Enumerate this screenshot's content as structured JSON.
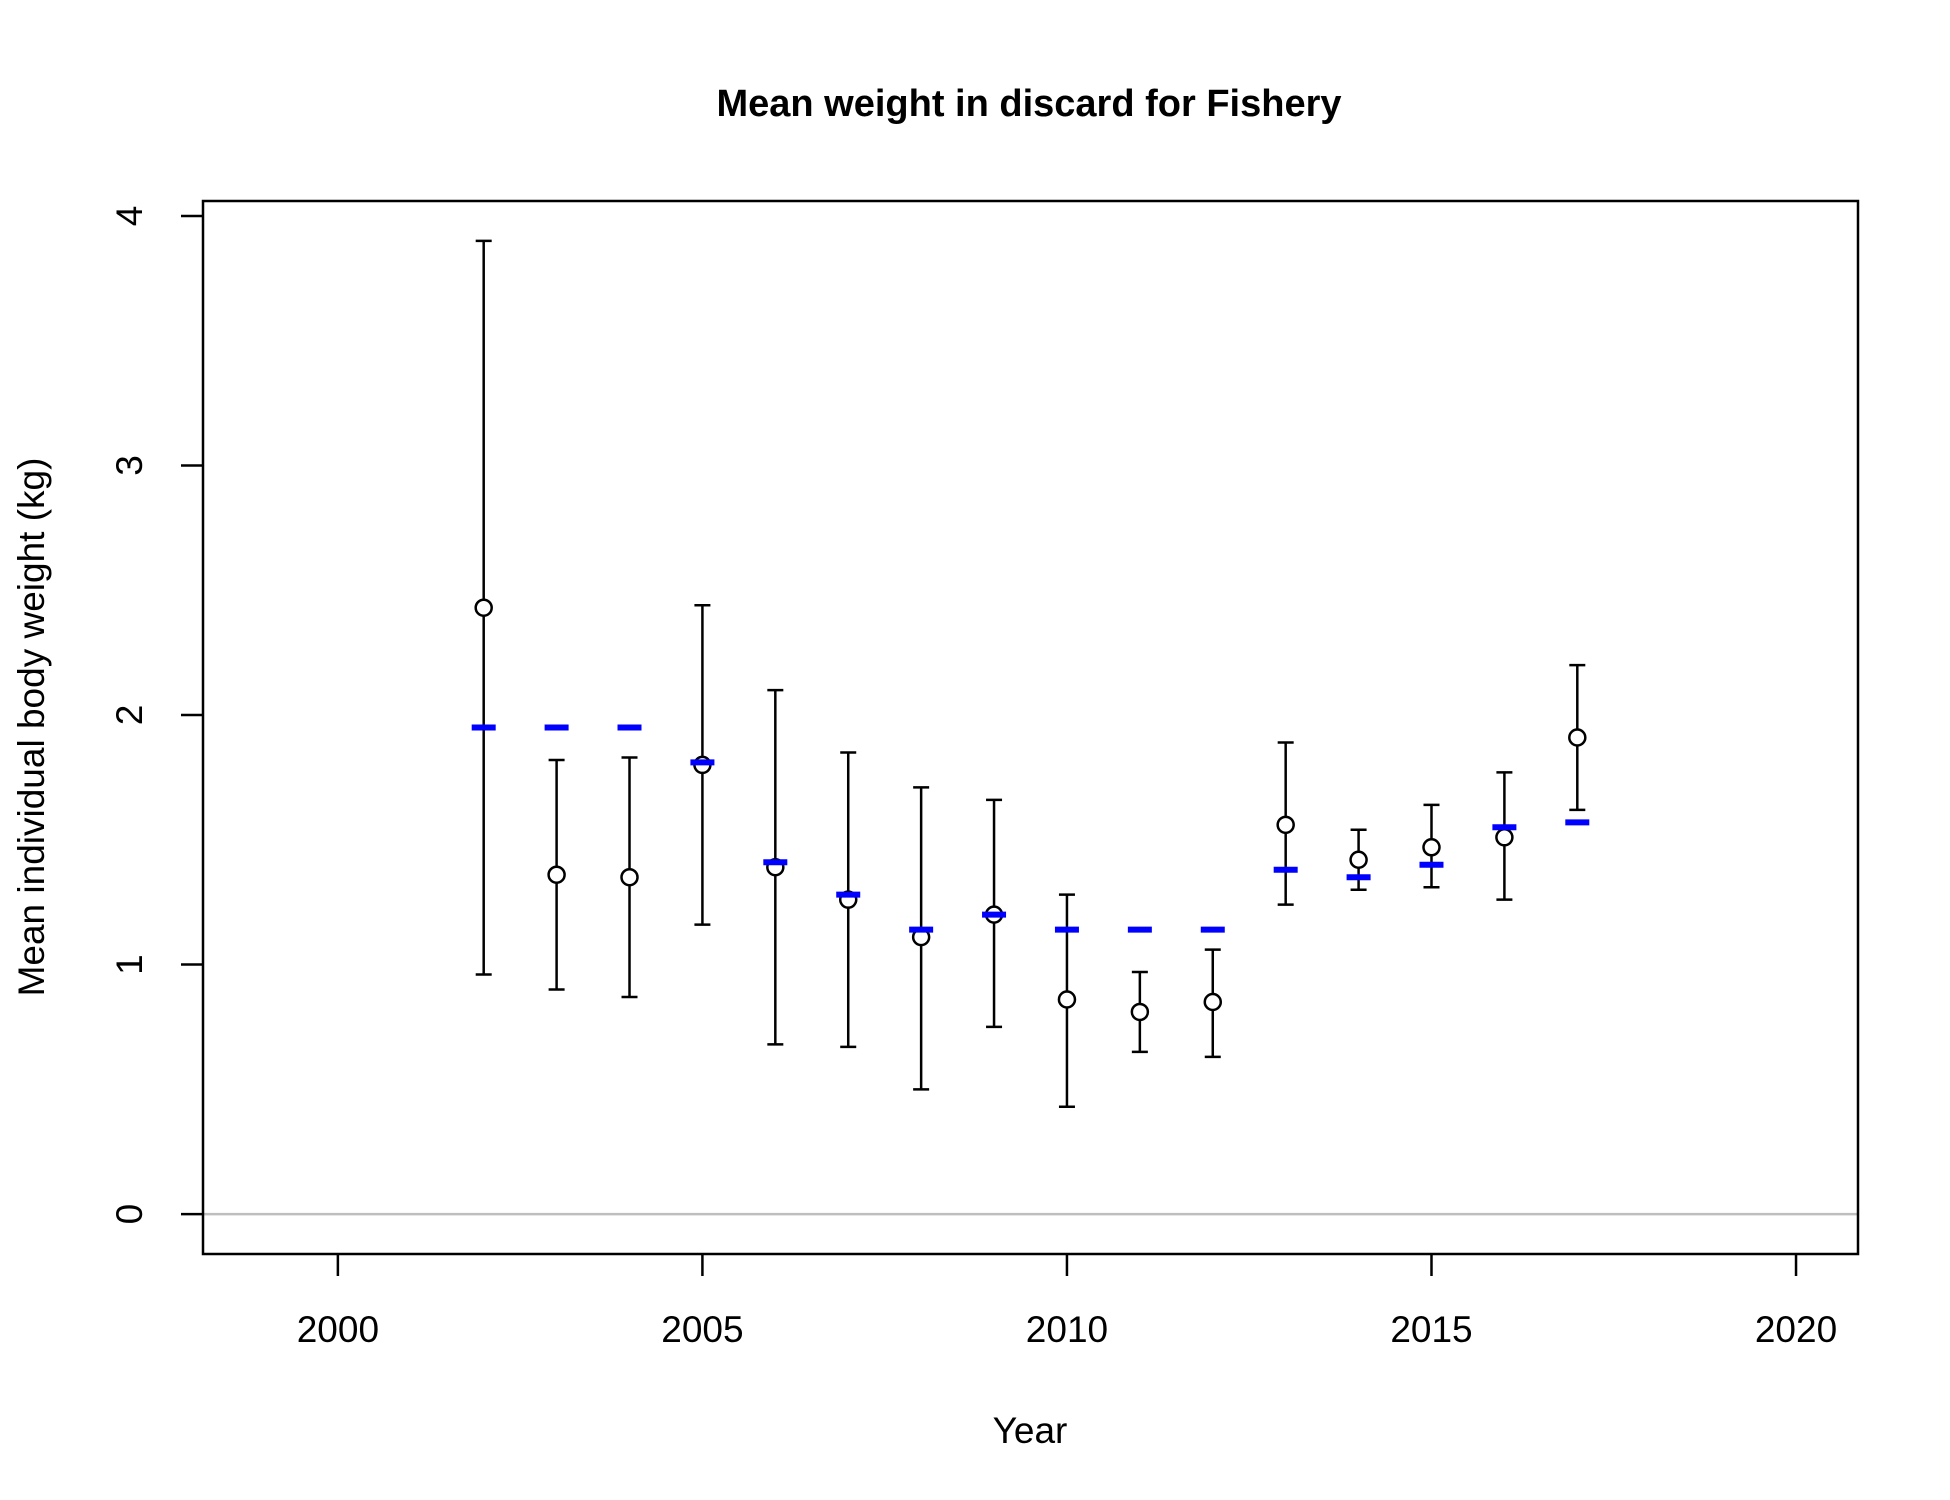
{
  "chart_data": {
    "type": "scatter",
    "title": "Mean weight in discard for Fishery",
    "xlabel": "Year",
    "ylabel": "Mean individual body weight (kg)",
    "xlim": [
      1998.15,
      2020.85
    ],
    "ylim": [
      -0.16,
      4.06
    ],
    "x_ticks": [
      "2000",
      "2005",
      "2010",
      "2015",
      "2020"
    ],
    "y_ticks": [
      "0",
      "1",
      "2",
      "3",
      "4"
    ],
    "grid": false,
    "colors": {
      "observed": "#000000",
      "expected": "#0000FF",
      "reference_line": "#BEBEBE"
    },
    "reference_line_y": 0,
    "series": [
      {
        "kind": "observed",
        "points": [
          {
            "x": 2002,
            "y": 2.43,
            "lo": 0.96,
            "hi": 3.9
          },
          {
            "x": 2003,
            "y": 1.36,
            "lo": 0.9,
            "hi": 1.82
          },
          {
            "x": 2004,
            "y": 1.35,
            "lo": 0.87,
            "hi": 1.83
          },
          {
            "x": 2005,
            "y": 1.8,
            "lo": 1.16,
            "hi": 2.44
          },
          {
            "x": 2006,
            "y": 1.39,
            "lo": 0.68,
            "hi": 2.1
          },
          {
            "x": 2007,
            "y": 1.26,
            "lo": 0.67,
            "hi": 1.85
          },
          {
            "x": 2008,
            "y": 1.11,
            "lo": 0.5,
            "hi": 1.71
          },
          {
            "x": 2009,
            "y": 1.2,
            "lo": 0.75,
            "hi": 1.66
          },
          {
            "x": 2010,
            "y": 0.86,
            "lo": 0.43,
            "hi": 1.28
          },
          {
            "x": 2011,
            "y": 0.81,
            "lo": 0.65,
            "hi": 0.97
          },
          {
            "x": 2012,
            "y": 0.85,
            "lo": 0.63,
            "hi": 1.06
          },
          {
            "x": 2013,
            "y": 1.56,
            "lo": 1.24,
            "hi": 1.89
          },
          {
            "x": 2014,
            "y": 1.42,
            "lo": 1.3,
            "hi": 1.54
          },
          {
            "x": 2015,
            "y": 1.47,
            "lo": 1.31,
            "hi": 1.64
          },
          {
            "x": 2016,
            "y": 1.51,
            "lo": 1.26,
            "hi": 1.77
          },
          {
            "x": 2017,
            "y": 1.91,
            "lo": 1.62,
            "hi": 2.2
          }
        ]
      },
      {
        "kind": "expected",
        "points": [
          {
            "x": 2002,
            "y": 1.95
          },
          {
            "x": 2003,
            "y": 1.95
          },
          {
            "x": 2004,
            "y": 1.95
          },
          {
            "x": 2005,
            "y": 1.81
          },
          {
            "x": 2006,
            "y": 1.41
          },
          {
            "x": 2007,
            "y": 1.28
          },
          {
            "x": 2008,
            "y": 1.14
          },
          {
            "x": 2009,
            "y": 1.2
          },
          {
            "x": 2010,
            "y": 1.14
          },
          {
            "x": 2011,
            "y": 1.14
          },
          {
            "x": 2012,
            "y": 1.14
          },
          {
            "x": 2013,
            "y": 1.38
          },
          {
            "x": 2014,
            "y": 1.35
          },
          {
            "x": 2015,
            "y": 1.4
          },
          {
            "x": 2016,
            "y": 1.55
          },
          {
            "x": 2017,
            "y": 1.57
          }
        ]
      }
    ]
  }
}
